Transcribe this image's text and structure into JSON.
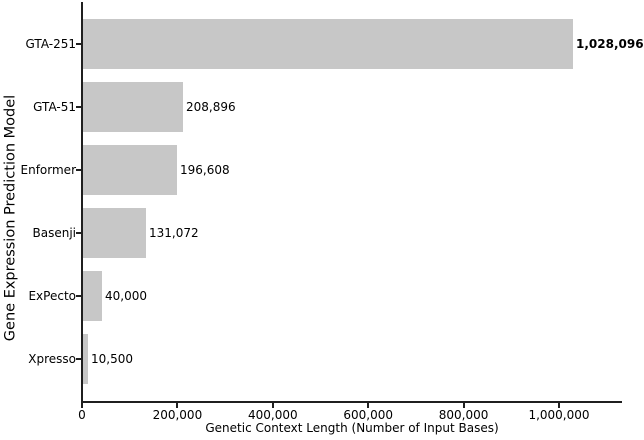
{
  "chart_data": {
    "type": "bar",
    "orientation": "horizontal",
    "title": "",
    "xlabel": "Genetic Context Length (Number of Input Bases)",
    "ylabel": "Gene Expression Prediction Model",
    "categories": [
      "GTA-251",
      "GTA-51",
      "Enformer",
      "Basenji",
      "ExPecto",
      "Xpresso"
    ],
    "values": [
      1028096,
      208896,
      196608,
      131072,
      40000,
      10500
    ],
    "value_labels": [
      "1,028,096",
      "208,896",
      "196,608",
      "131,072",
      "40,000",
      "10,500"
    ],
    "emphasized_index": 0,
    "xlim": [
      0,
      1130000
    ],
    "xticks": [
      0,
      200000,
      400000,
      600000,
      800000,
      1000000
    ],
    "xtick_labels": [
      "0",
      "200,000",
      "400,000",
      "600,000",
      "800,000",
      "1,000,000"
    ],
    "grid": false,
    "legend": null,
    "bar_color": "#c7c7c7",
    "axis_color": "#1f1f1f",
    "text_color": "#000000",
    "background_color": "#ffffff"
  }
}
